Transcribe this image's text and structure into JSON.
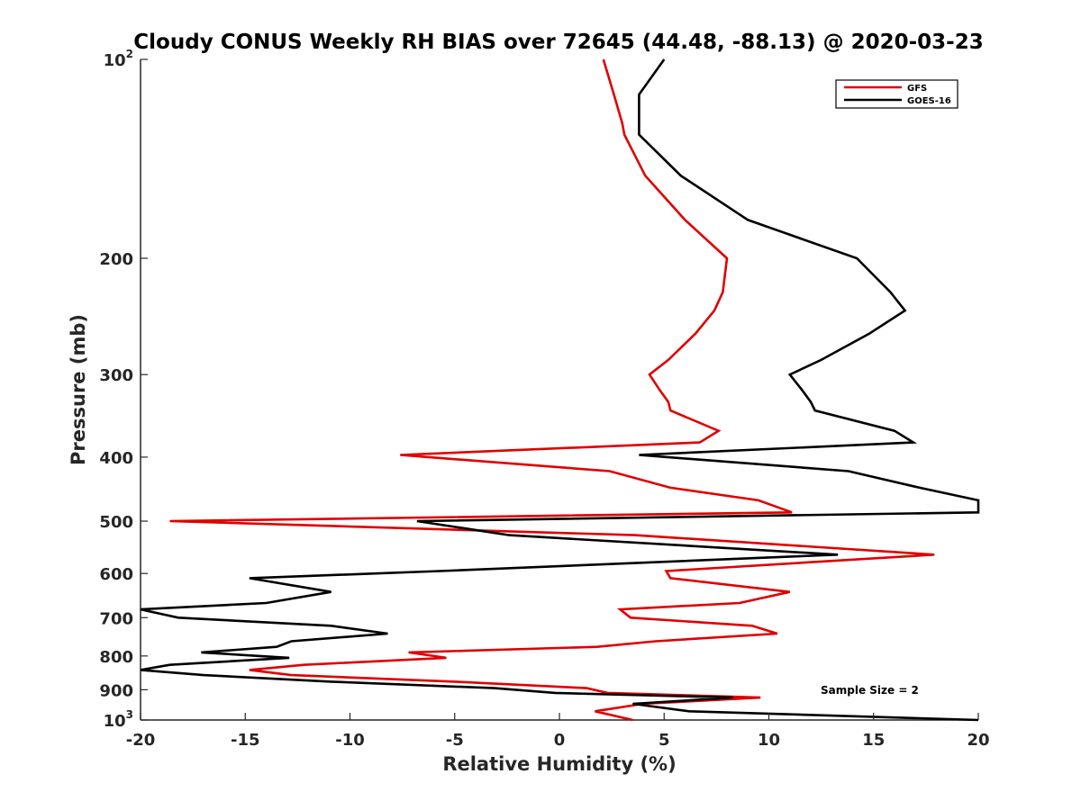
{
  "chart_data": {
    "type": "line",
    "title": "Cloudy CONUS Weekly RH BIAS over 72645 (44.48, -88.13) @ 2020-03-23",
    "xlabel": "Relative Humidity (%)",
    "ylabel": "Pressure (mb)",
    "xlim": [
      -20,
      20
    ],
    "ylim": [
      100,
      1000
    ],
    "y_scale": "log",
    "y_reversed": true,
    "x_ticks": [
      "-20",
      "-15",
      "-10",
      "-5",
      "0",
      "5",
      "10",
      "15",
      "20"
    ],
    "y_ticks": [
      {
        "value": 100,
        "base": "10",
        "exp": "2"
      },
      {
        "value": 200,
        "label": "200"
      },
      {
        "value": 300,
        "label": "300"
      },
      {
        "value": 400,
        "label": "400"
      },
      {
        "value": 500,
        "label": "500"
      },
      {
        "value": 600,
        "label": "600"
      },
      {
        "value": 700,
        "label": "700"
      },
      {
        "value": 800,
        "label": "800"
      },
      {
        "value": 900,
        "label": "900"
      },
      {
        "value": 1000,
        "base": "10",
        "exp": "3"
      }
    ],
    "legend": {
      "position": "top-right",
      "entries": [
        "GFS",
        "GOES-16"
      ]
    },
    "annotation": "Sample Size = 2",
    "series": [
      {
        "name": "GFS",
        "color": "#e00000",
        "points": [
          [
            2.1,
            100
          ],
          [
            2.6,
            113
          ],
          [
            3.0,
            125
          ],
          [
            3.1,
            130
          ],
          [
            4.1,
            150
          ],
          [
            6.0,
            175
          ],
          [
            8.0,
            200
          ],
          [
            7.8,
            225
          ],
          [
            7.4,
            240
          ],
          [
            6.5,
            260
          ],
          [
            5.2,
            285
          ],
          [
            4.3,
            300
          ],
          [
            4.8,
            317
          ],
          [
            5.2,
            330
          ],
          [
            5.3,
            340
          ],
          [
            7.6,
            365
          ],
          [
            6.7,
            380
          ],
          [
            -7.6,
            397
          ],
          [
            2.4,
            420
          ],
          [
            5.3,
            445
          ],
          [
            9.5,
            465
          ],
          [
            11.1,
            485
          ],
          [
            -18.6,
            500
          ],
          [
            3.6,
            525
          ],
          [
            17.9,
            562
          ],
          [
            5.1,
            595
          ],
          [
            5.3,
            610
          ],
          [
            11.0,
            640
          ],
          [
            8.6,
            665
          ],
          [
            2.9,
            680
          ],
          [
            3.4,
            700
          ],
          [
            9.2,
            720
          ],
          [
            10.4,
            740
          ],
          [
            4.6,
            760
          ],
          [
            1.8,
            775
          ],
          [
            -7.2,
            790
          ],
          [
            -5.4,
            805
          ],
          [
            -12.2,
            825
          ],
          [
            -14.8,
            840
          ],
          [
            -12.8,
            855
          ],
          [
            -5.0,
            875
          ],
          [
            1.3,
            895
          ],
          [
            2.3,
            910
          ],
          [
            9.6,
            925
          ],
          [
            4.0,
            945
          ],
          [
            1.7,
            970
          ],
          [
            3.5,
            1000
          ]
        ]
      },
      {
        "name": "GOES-16",
        "color": "#000000",
        "points": [
          [
            5.0,
            100
          ],
          [
            3.8,
            113
          ],
          [
            3.8,
            125
          ],
          [
            3.8,
            130
          ],
          [
            5.8,
            150
          ],
          [
            9.0,
            175
          ],
          [
            14.2,
            200
          ],
          [
            15.8,
            225
          ],
          [
            16.5,
            240
          ],
          [
            14.8,
            260
          ],
          [
            12.5,
            285
          ],
          [
            11.0,
            300
          ],
          [
            11.6,
            317
          ],
          [
            12.0,
            330
          ],
          [
            12.2,
            340
          ],
          [
            16.0,
            365
          ],
          [
            16.9,
            380
          ],
          [
            3.8,
            397
          ],
          [
            13.8,
            420
          ],
          [
            17.2,
            445
          ],
          [
            20.0,
            465
          ],
          [
            20.0,
            485
          ],
          [
            -6.8,
            500
          ],
          [
            -2.4,
            525
          ],
          [
            13.3,
            562
          ],
          [
            -5.7,
            595
          ],
          [
            -14.8,
            610
          ],
          [
            -10.9,
            640
          ],
          [
            -14.0,
            665
          ],
          [
            -20.0,
            680
          ],
          [
            -18.2,
            700
          ],
          [
            -10.9,
            720
          ],
          [
            -8.2,
            740
          ],
          [
            -12.8,
            760
          ],
          [
            -13.5,
            775
          ],
          [
            -17.1,
            790
          ],
          [
            -12.9,
            805
          ],
          [
            -18.6,
            825
          ],
          [
            -20.0,
            840
          ],
          [
            -17.0,
            855
          ],
          [
            -10.9,
            875
          ],
          [
            -3.1,
            895
          ],
          [
            -0.2,
            910
          ],
          [
            8.3,
            925
          ],
          [
            3.5,
            945
          ],
          [
            6.2,
            970
          ],
          [
            20.0,
            1000
          ]
        ]
      }
    ]
  }
}
